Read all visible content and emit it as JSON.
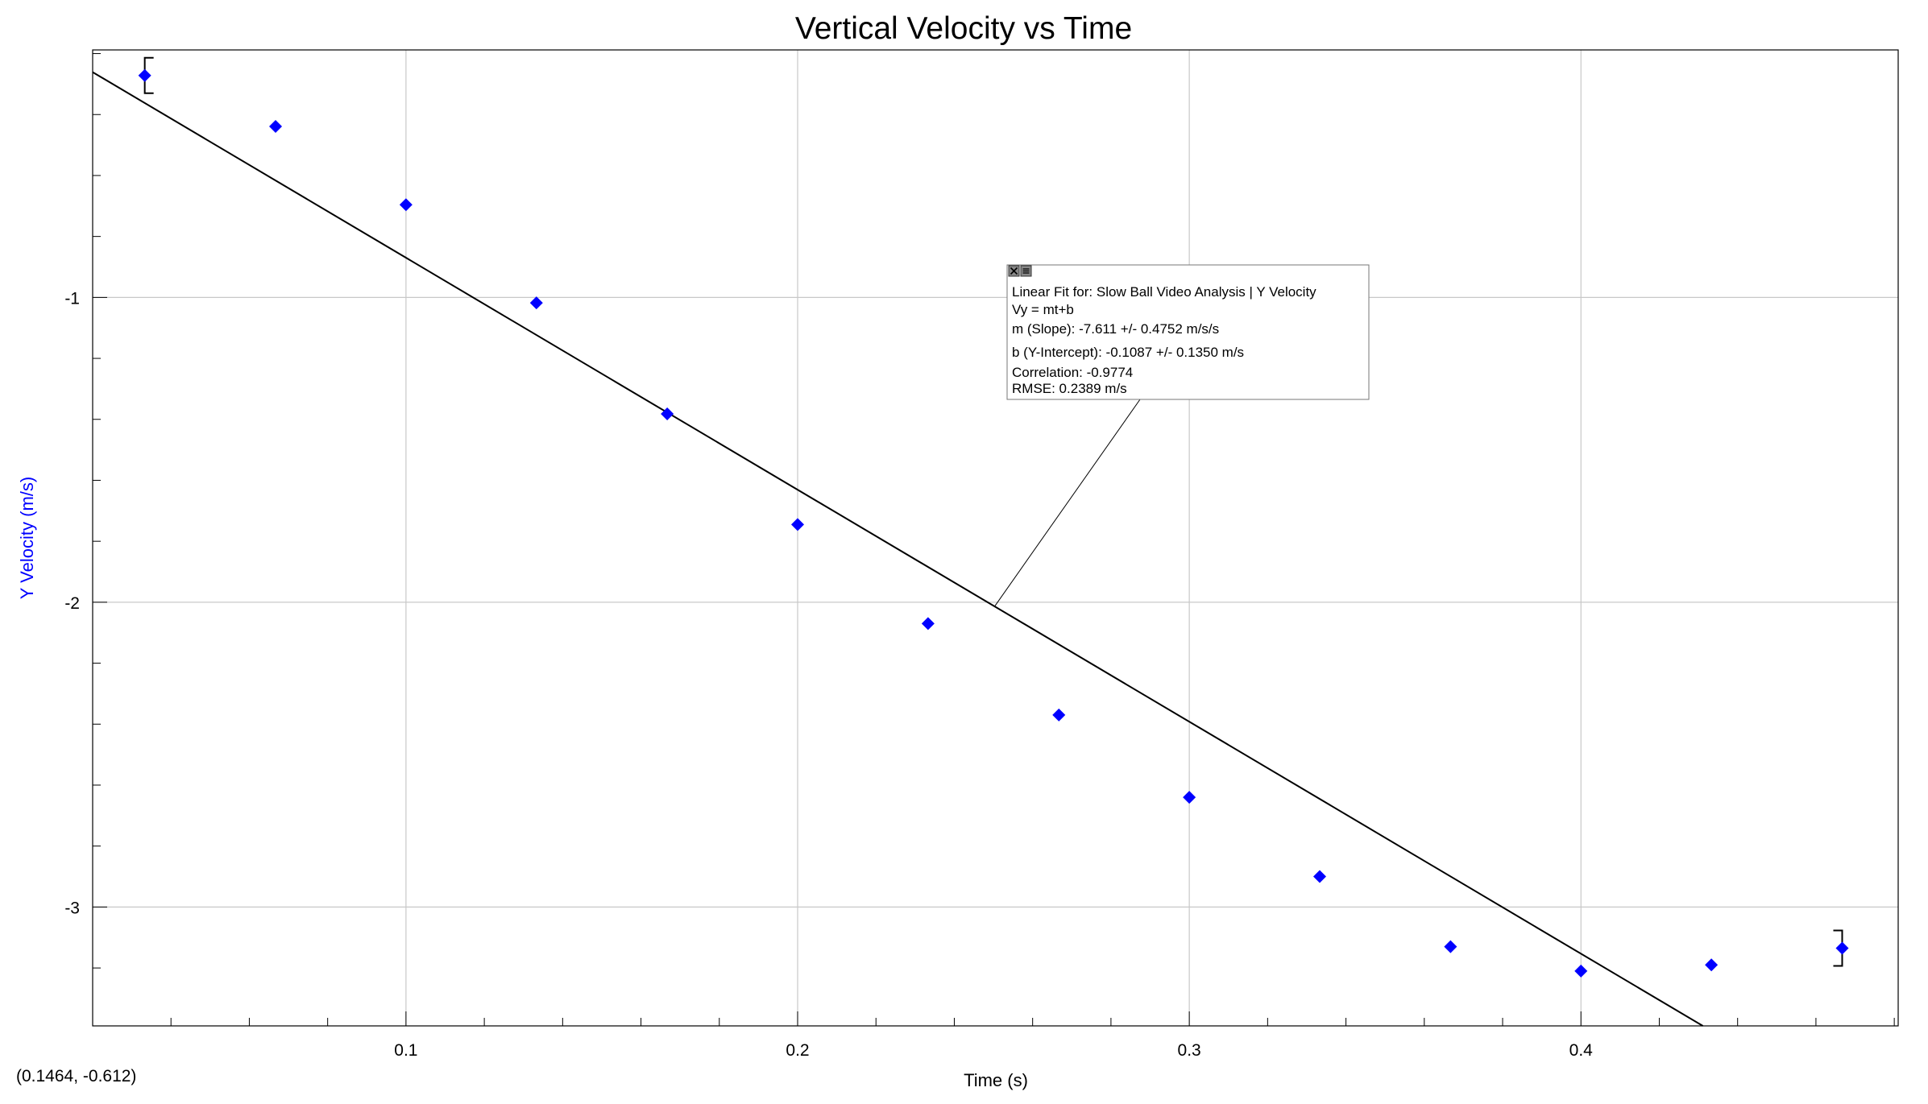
{
  "chart_data": {
    "type": "scatter",
    "title": "Vertical Velocity vs Time",
    "xlabel": "Time (s)",
    "ylabel": "Y Velocity (m/s)",
    "xlim": [
      0.02,
      0.481
    ],
    "ylim": [
      -3.39,
      -0.188
    ],
    "x_ticks": [
      0.1,
      0.2,
      0.3,
      0.4
    ],
    "x_tick_labels": [
      "0.1",
      "0.2",
      "0.3",
      "0.4"
    ],
    "x_minor_step": 0.02,
    "y_ticks": [
      -1,
      -2,
      -3
    ],
    "y_tick_labels": [
      "-1",
      "-2",
      "-3"
    ],
    "y_minor_step": 0.2,
    "grid": true,
    "series": [
      {
        "color": "#0000ff",
        "marker": "diamond",
        "x": [
          0.0333,
          0.0667,
          0.1,
          0.1333,
          0.1667,
          0.2,
          0.2333,
          0.2667,
          0.3,
          0.3333,
          0.3667,
          0.4,
          0.4333,
          0.4667
        ],
        "y": [
          -0.272,
          -0.439,
          -0.696,
          -1.018,
          -1.382,
          -1.745,
          -2.07,
          -2.37,
          -2.64,
          -2.9,
          -3.13,
          -3.21,
          -3.19,
          -3.135
        ]
      }
    ],
    "fit_line": {
      "slope": -7.611,
      "intercept": -0.1087,
      "color": "#000000"
    },
    "fit_box": {
      "lines": [
        "Linear Fit for: Slow Ball Video Analysis | Y Velocity",
        "Vy = mt+b",
        "m (Slope): -7.611 +/- 0.4752 m/s/s",
        "b (Y-Intercept): -0.1087 +/- 0.1350 m/s",
        "Correlation: -0.9774",
        "RMSE: 0.2389 m/s"
      ],
      "pointer_x": 0.2503
    },
    "bracket_range": [
      0.0333,
      0.4667
    ],
    "coordinate_readout": "(0.1464, -0.612)",
    "colors": {
      "ylabel": "#0000ff",
      "grid": "#c8c8c8",
      "frame": "#000000"
    }
  }
}
